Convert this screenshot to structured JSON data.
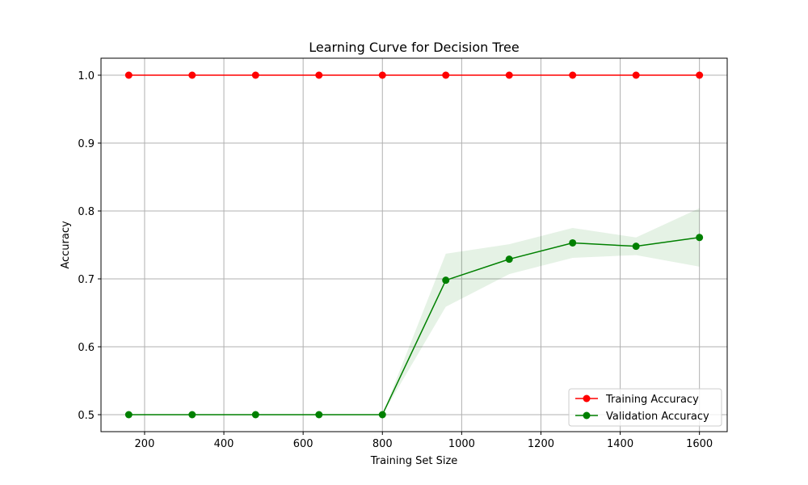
{
  "chart_data": {
    "type": "line",
    "title": "Learning Curve for Decision Tree",
    "xlabel": "Training Set Size",
    "ylabel": "Accuracy",
    "xlim": [
      90,
      1670
    ],
    "ylim": [
      0.475,
      1.025
    ],
    "x": [
      160,
      320,
      480,
      640,
      800,
      960,
      1120,
      1280,
      1440,
      1600
    ],
    "x_ticks": [
      200,
      400,
      600,
      800,
      1000,
      1200,
      1400,
      1600
    ],
    "y_ticks": [
      0.5,
      0.6,
      0.7,
      0.8,
      0.9,
      1.0
    ],
    "x_tick_labels": [
      "200",
      "400",
      "600",
      "800",
      "1000",
      "1200",
      "1400",
      "1600"
    ],
    "y_tick_labels": [
      "0.5",
      "0.6",
      "0.7",
      "0.8",
      "0.9",
      "1.0"
    ],
    "grid": true,
    "legend_position": "lower-right",
    "series": [
      {
        "name": "Training Accuracy",
        "color": "#ff0000",
        "values": [
          1.0,
          1.0,
          1.0,
          1.0,
          1.0,
          1.0,
          1.0,
          1.0,
          1.0,
          1.0
        ],
        "band_lower": [
          1.0,
          1.0,
          1.0,
          1.0,
          1.0,
          1.0,
          1.0,
          1.0,
          1.0,
          1.0
        ],
        "band_upper": [
          1.0,
          1.0,
          1.0,
          1.0,
          1.0,
          1.0,
          1.0,
          1.0,
          1.0,
          1.0
        ]
      },
      {
        "name": "Validation Accuracy",
        "color": "#008000",
        "values": [
          0.5,
          0.5,
          0.5,
          0.5,
          0.5,
          0.698,
          0.729,
          0.753,
          0.748,
          0.761
        ],
        "band_lower": [
          0.5,
          0.5,
          0.5,
          0.5,
          0.5,
          0.659,
          0.707,
          0.731,
          0.735,
          0.718
        ],
        "band_upper": [
          0.5,
          0.5,
          0.5,
          0.5,
          0.5,
          0.737,
          0.751,
          0.775,
          0.761,
          0.804
        ]
      }
    ]
  }
}
